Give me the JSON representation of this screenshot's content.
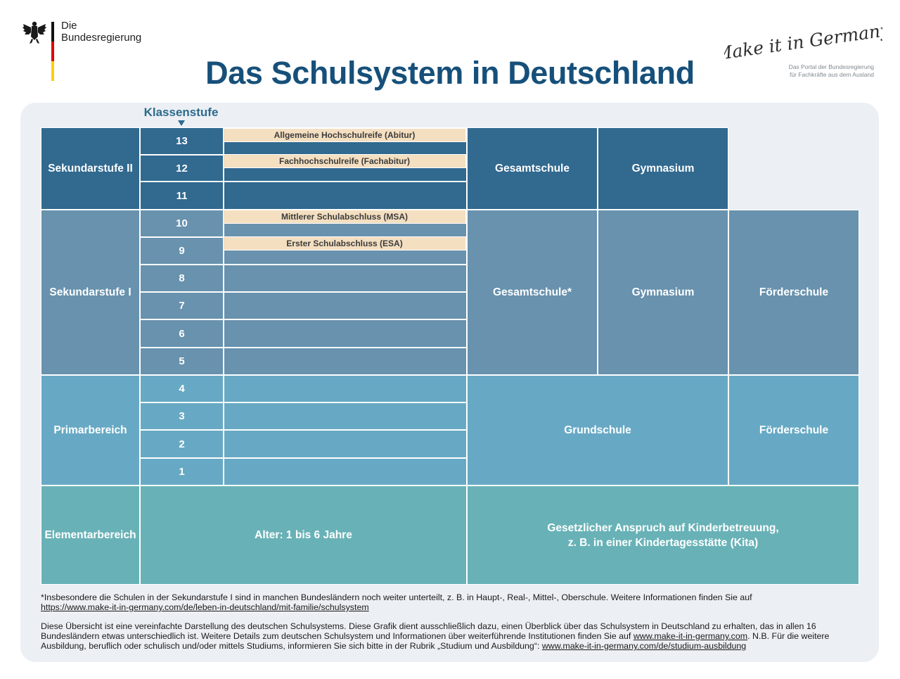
{
  "header": {
    "brand": "Die\nBundesregierung",
    "title": "Das Schulsystem in Deutschland",
    "logo_script": "Make it in Germany",
    "logo_subtitle": "Das Portal der Bundesregierung\nfür Fachkräfte aus dem Ausland"
  },
  "diagram": {
    "axis_label": "Klassenstufe",
    "grades": [
      "13",
      "12",
      "11",
      "10",
      "9",
      "8",
      "7",
      "6",
      "5",
      "4",
      "3",
      "2",
      "1"
    ],
    "stages": {
      "sek2": "Sekundarstufe II",
      "sek1": "Sekundarstufe I",
      "primar": "Primarbereich",
      "elementar": "Elementarbereich"
    },
    "degrees": {
      "abitur": "Allgemeine Hochschulreife (Abitur)",
      "fachabitur": "Fachhochschulreife (Fachabitur)",
      "msa": "Mittlerer Schulabschluss  (MSA)",
      "esa": "Erster Schulabschluss (ESA)"
    },
    "schools": {
      "gesamtschule_sek2": "Gesamtschule",
      "gymnasium_sek2": "Gymnasium",
      "gesamtschule_sek1": "Gesamtschule*",
      "gymnasium_sek1": "Gymnasium",
      "foerderschule_sek1": "Förderschule",
      "grundschule": "Grundschule",
      "foerderschule_primar": "Förderschule"
    },
    "elementar": {
      "age": "Alter: 1 bis 6 Jahre",
      "claim": "Gesetzlicher Anspruch auf Kinderbetreuung,\nz. B. in einer Kindertagesstätte (Kita)"
    },
    "colors": {
      "sek2": "#31698f",
      "sek1": "#6892ae",
      "primar": "#67a9c4",
      "elementar": "#68b2b7",
      "degree": "#f4dfc1",
      "title": "#16507a"
    }
  },
  "footnotes": {
    "note1_text": "*Insbesondere die Schulen in der Sekundarstufe I sind in manchen Bundesländern noch weiter unterteilt, z. B. in Haupt-, Real-, Mittel-, Oberschule. Weitere Informationen finden Sie auf",
    "note1_link": "https://www.make-it-in-germany.com/de/leben-in-deutschland/mit-familie/schulsystem",
    "note2_a": "Diese Übersicht ist eine vereinfachte Darstellung des deutschen Schulsystems. Diese Grafik dient ausschließlich dazu, einen Überblick über das Schulsystem in Deutschland zu erhalten, das in allen 16 Bundesländern etwas unterschiedlich ist. Weitere Details zum deutschen Schulsystem und Informationen über weiterführende Institutionen finden Sie auf ",
    "note2_link1": "www.make-it-in-germany.com",
    "note2_b": ". N.B. Für die weitere Ausbildung, beruflich oder schulisch und/oder mittels Studiums, informieren Sie sich bitte in der Rubrik „Studium und Ausbildung“: ",
    "note2_link2": "www.make-it-in-germany.com/de/studium-ausbildung"
  }
}
